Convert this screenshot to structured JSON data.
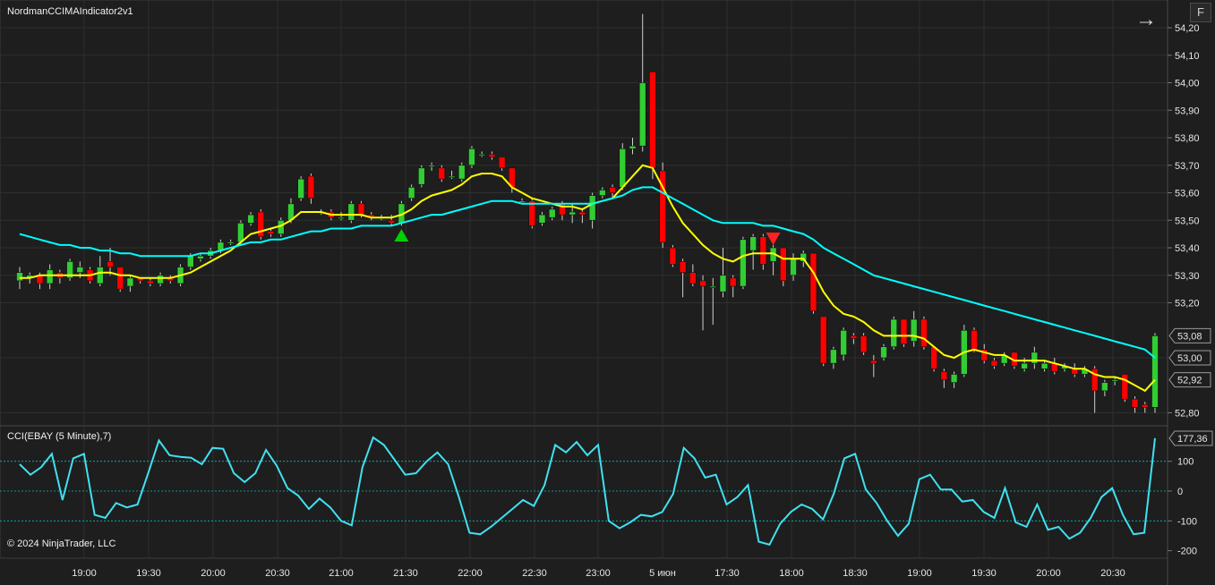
{
  "chart": {
    "title": "NordmanCCIMAIndicator2v1",
    "panel_button": "F",
    "nav_arrow": "→",
    "copyright": "© 2024 NinjaTrader, LLC",
    "cci_title": "CCI(EBAY (5 Minute),7)"
  },
  "chart_data": [
    {
      "type": "candlestick",
      "title": "NordmanCCIMAIndicator2v1",
      "ylim": [
        52.76,
        54.26
      ],
      "price_ticks": [
        "54,20",
        "54,10",
        "54,00",
        "53,90",
        "53,80",
        "53,70",
        "53,60",
        "53,50",
        "53,40",
        "53,30",
        "53,20",
        "52,80"
      ],
      "time_ticks": [
        "19:00",
        "19:30",
        "20:00",
        "20:30",
        "21:00",
        "21:30",
        "22:00",
        "22:30",
        "23:00",
        "5 июн",
        "17:30",
        "18:00",
        "18:30",
        "19:00",
        "19:30",
        "20:00",
        "20:30"
      ],
      "price_labels": [
        {
          "text": "53,08",
          "value": 53.08,
          "color": "#ffff00"
        },
        {
          "text": "53,00",
          "value": 53.0,
          "color": "#00ffff"
        },
        {
          "text": "52,92",
          "value": 52.92,
          "color": "#1e1e1e"
        }
      ],
      "candles": [
        [
          53.28,
          53.31,
          53.33,
          53.25
        ],
        [
          53.29,
          53.3,
          53.31,
          53.27
        ],
        [
          53.3,
          53.27,
          53.31,
          53.25
        ],
        [
          53.27,
          53.32,
          53.34,
          53.25
        ],
        [
          53.31,
          53.29,
          53.32,
          53.27
        ],
        [
          53.29,
          53.35,
          53.36,
          53.28
        ],
        [
          53.31,
          53.33,
          53.35,
          53.29
        ],
        [
          53.32,
          53.28,
          53.33,
          53.27
        ],
        [
          53.27,
          53.33,
          53.37,
          53.26
        ],
        [
          53.35,
          53.33,
          53.4,
          53.3
        ],
        [
          53.33,
          53.25,
          53.33,
          53.24
        ],
        [
          53.26,
          53.29,
          53.3,
          53.24
        ],
        [
          53.29,
          53.28,
          53.29,
          53.27
        ],
        [
          53.28,
          53.27,
          53.29,
          53.26
        ],
        [
          53.27,
          53.3,
          53.31,
          53.26
        ],
        [
          53.29,
          53.28,
          53.3,
          53.27
        ],
        [
          53.27,
          53.33,
          53.34,
          53.26
        ],
        [
          53.33,
          53.37,
          53.38,
          53.32
        ],
        [
          53.36,
          53.37,
          53.38,
          53.35
        ],
        [
          53.37,
          53.39,
          53.4,
          53.36
        ],
        [
          53.39,
          53.42,
          53.43,
          53.38
        ],
        [
          53.42,
          53.42,
          53.43,
          53.41
        ],
        [
          53.42,
          53.49,
          53.5,
          53.41
        ],
        [
          53.49,
          53.52,
          53.53,
          53.48
        ],
        [
          53.53,
          53.44,
          53.54,
          53.43
        ],
        [
          53.46,
          53.45,
          53.47,
          53.44
        ],
        [
          53.45,
          53.5,
          53.51,
          53.44
        ],
        [
          53.5,
          53.56,
          53.58,
          53.49
        ],
        [
          53.58,
          53.65,
          53.66,
          53.57
        ],
        [
          53.66,
          53.58,
          53.67,
          53.56
        ],
        [
          53.53,
          53.53,
          53.54,
          53.52
        ],
        [
          53.53,
          53.51,
          53.54,
          53.5
        ],
        [
          53.51,
          53.51,
          53.53,
          53.5
        ],
        [
          53.5,
          53.56,
          53.57,
          53.49
        ],
        [
          53.56,
          53.52,
          53.57,
          53.51
        ],
        [
          53.52,
          53.51,
          53.53,
          53.5
        ],
        [
          53.51,
          53.51,
          53.52,
          53.5
        ],
        [
          53.5,
          53.49,
          53.52,
          53.48
        ],
        [
          53.49,
          53.56,
          53.57,
          53.48
        ],
        [
          53.58,
          53.62,
          53.63,
          53.57
        ],
        [
          53.63,
          53.69,
          53.7,
          53.62
        ],
        [
          53.7,
          53.7,
          53.71,
          53.68
        ],
        [
          53.69,
          53.65,
          53.7,
          53.64
        ],
        [
          53.66,
          53.66,
          53.68,
          53.65
        ],
        [
          53.65,
          53.7,
          53.71,
          53.64
        ],
        [
          53.7,
          53.76,
          53.77,
          53.69
        ],
        [
          53.74,
          53.74,
          53.75,
          53.73
        ],
        [
          53.74,
          53.73,
          53.75,
          53.72
        ],
        [
          53.73,
          53.69,
          53.73,
          53.68
        ],
        [
          53.69,
          53.62,
          53.69,
          53.6
        ],
        [
          53.57,
          53.57,
          53.58,
          53.56
        ],
        [
          53.57,
          53.48,
          53.58,
          53.47
        ],
        [
          53.49,
          53.52,
          53.53,
          53.48
        ],
        [
          53.51,
          53.54,
          53.55,
          53.5
        ],
        [
          53.56,
          53.52,
          53.57,
          53.5
        ],
        [
          53.52,
          53.53,
          53.56,
          53.49
        ],
        [
          53.53,
          53.52,
          53.54,
          53.49
        ],
        [
          53.5,
          53.59,
          53.6,
          53.47
        ],
        [
          53.59,
          53.61,
          53.62,
          53.58
        ],
        [
          53.62,
          53.6,
          53.63,
          53.58
        ],
        [
          53.62,
          53.76,
          53.78,
          53.61
        ],
        [
          53.76,
          53.77,
          53.8,
          53.74
        ],
        [
          53.77,
          54.0,
          54.25,
          53.75
        ],
        [
          54.04,
          53.69,
          54.04,
          53.65
        ],
        [
          53.68,
          53.42,
          53.71,
          53.4
        ],
        [
          53.4,
          53.34,
          53.41,
          53.33
        ],
        [
          53.35,
          53.31,
          53.36,
          53.22
        ],
        [
          53.31,
          53.27,
          53.34,
          53.26
        ],
        [
          53.28,
          53.26,
          53.3,
          53.1
        ],
        [
          53.26,
          53.26,
          53.29,
          53.12
        ],
        [
          53.24,
          53.3,
          53.4,
          53.22
        ],
        [
          53.29,
          53.26,
          53.3,
          53.22
        ],
        [
          53.26,
          53.43,
          53.44,
          53.25
        ],
        [
          53.39,
          53.44,
          53.45,
          53.32
        ],
        [
          53.44,
          53.34,
          53.45,
          53.32
        ],
        [
          53.35,
          53.4,
          53.41,
          53.3
        ],
        [
          53.4,
          53.28,
          53.4,
          53.26
        ],
        [
          53.3,
          53.36,
          53.38,
          53.28
        ],
        [
          53.35,
          53.38,
          53.39,
          53.33
        ],
        [
          53.38,
          53.17,
          53.38,
          53.16
        ],
        [
          53.15,
          52.98,
          53.15,
          52.97
        ],
        [
          52.98,
          53.03,
          53.04,
          52.96
        ],
        [
          53.01,
          53.1,
          53.11,
          52.99
        ],
        [
          53.08,
          53.07,
          53.09,
          53.05
        ],
        [
          53.08,
          53.02,
          53.09,
          53.01
        ],
        [
          52.99,
          52.98,
          53.01,
          52.93
        ],
        [
          53.0,
          53.04,
          53.05,
          52.99
        ],
        [
          53.04,
          53.14,
          53.15,
          53.03
        ],
        [
          53.14,
          53.05,
          53.14,
          53.04
        ],
        [
          53.06,
          53.14,
          53.17,
          53.04
        ],
        [
          53.14,
          53.04,
          53.15,
          53.03
        ],
        [
          53.04,
          52.96,
          53.04,
          52.95
        ],
        [
          52.95,
          52.92,
          52.96,
          52.89
        ],
        [
          52.91,
          52.94,
          52.95,
          52.89
        ],
        [
          52.94,
          53.1,
          53.12,
          52.93
        ],
        [
          53.1,
          53.03,
          53.11,
          53.02
        ],
        [
          53.03,
          52.99,
          53.05,
          52.98
        ],
        [
          52.99,
          52.97,
          53.0,
          52.96
        ],
        [
          52.98,
          53.01,
          53.02,
          52.97
        ],
        [
          53.02,
          52.97,
          53.02,
          52.96
        ],
        [
          52.96,
          52.98,
          53.0,
          52.95
        ],
        [
          52.98,
          53.02,
          53.04,
          52.96
        ],
        [
          52.96,
          52.98,
          52.99,
          52.95
        ],
        [
          52.98,
          52.95,
          53.0,
          52.94
        ],
        [
          52.96,
          52.97,
          52.98,
          52.95
        ],
        [
          52.96,
          52.94,
          52.98,
          52.93
        ],
        [
          52.94,
          52.96,
          52.97,
          52.93
        ],
        [
          52.96,
          52.88,
          52.97,
          52.8
        ],
        [
          52.88,
          52.91,
          52.92,
          52.86
        ],
        [
          52.92,
          52.92,
          52.93,
          52.9
        ],
        [
          52.94,
          52.85,
          52.94,
          52.84
        ],
        [
          52.85,
          52.82,
          52.86,
          52.8
        ],
        [
          52.83,
          52.82,
          52.84,
          52.8
        ],
        [
          52.82,
          53.08,
          53.09,
          52.8
        ]
      ],
      "series": [
        {
          "name": "",
          "color": "#ffff00",
          "values": [
            53.29,
            53.29,
            53.3,
            53.3,
            53.3,
            53.3,
            53.3,
            53.3,
            53.31,
            53.31,
            53.3,
            53.3,
            53.29,
            53.29,
            53.29,
            53.29,
            53.3,
            53.31,
            53.33,
            53.35,
            53.37,
            53.39,
            53.42,
            53.45,
            53.46,
            53.47,
            53.48,
            53.5,
            53.53,
            53.53,
            53.53,
            53.52,
            53.52,
            53.52,
            53.52,
            53.51,
            53.51,
            53.51,
            53.52,
            53.54,
            53.57,
            53.59,
            53.6,
            53.61,
            53.63,
            53.66,
            53.67,
            53.67,
            53.66,
            53.62,
            53.6,
            53.58,
            53.57,
            53.56,
            53.55,
            53.55,
            53.54,
            53.56,
            53.57,
            53.58,
            53.62,
            53.66,
            53.7,
            53.69,
            53.62,
            53.55,
            53.49,
            53.45,
            53.41,
            53.38,
            53.36,
            53.35,
            53.37,
            53.38,
            53.38,
            53.38,
            53.36,
            53.36,
            53.36,
            53.31,
            53.24,
            53.19,
            53.16,
            53.15,
            53.13,
            53.1,
            53.08,
            53.08,
            53.08,
            53.08,
            53.07,
            53.04,
            53.01,
            53.0,
            53.02,
            53.03,
            53.02,
            53.01,
            53.01,
            52.99,
            52.99,
            52.99,
            52.99,
            52.98,
            52.97,
            52.96,
            52.96,
            52.94,
            52.93,
            52.93,
            52.92,
            52.9,
            52.88,
            52.92
          ]
        },
        {
          "name": "",
          "color": "#00ffff",
          "values": [
            53.45,
            53.44,
            53.43,
            53.42,
            53.41,
            53.41,
            53.4,
            53.4,
            53.39,
            53.39,
            53.38,
            53.38,
            53.37,
            53.37,
            53.37,
            53.37,
            53.37,
            53.37,
            53.38,
            53.38,
            53.39,
            53.4,
            53.41,
            53.42,
            53.42,
            53.43,
            53.43,
            53.44,
            53.45,
            53.46,
            53.46,
            53.47,
            53.47,
            53.47,
            53.48,
            53.48,
            53.48,
            53.48,
            53.49,
            53.5,
            53.51,
            53.52,
            53.52,
            53.53,
            53.54,
            53.55,
            53.56,
            53.57,
            53.57,
            53.57,
            53.56,
            53.56,
            53.56,
            53.56,
            53.56,
            53.56,
            53.56,
            53.56,
            53.57,
            53.58,
            53.59,
            53.61,
            53.62,
            53.62,
            53.6,
            53.58,
            53.56,
            53.54,
            53.52,
            53.5,
            53.49,
            53.49,
            53.49,
            53.49,
            53.48,
            53.48,
            53.47,
            53.46,
            53.45,
            53.43,
            53.4,
            53.38,
            53.36,
            53.34,
            53.32,
            53.3,
            53.29,
            53.28,
            53.27,
            53.26,
            53.25,
            53.24,
            53.23,
            53.22,
            53.21,
            53.2,
            53.19,
            53.18,
            53.17,
            53.16,
            53.15,
            53.14,
            53.13,
            53.12,
            53.11,
            53.1,
            53.09,
            53.08,
            53.07,
            53.06,
            53.05,
            53.04,
            53.03,
            53.0
          ]
        }
      ],
      "markers": [
        {
          "type": "up",
          "index": 38
        },
        {
          "type": "down",
          "index": 75
        }
      ]
    },
    {
      "type": "line",
      "title": "CCI(EBAY (5 Minute),7)",
      "ylim": [
        -230,
        210
      ],
      "ticks": [
        "100",
        "0",
        "-100",
        "-200"
      ],
      "current_label": "177,36",
      "levels": [
        100,
        0,
        -100
      ],
      "values": [
        90,
        55,
        80,
        125,
        -30,
        110,
        125,
        -80,
        -90,
        -40,
        -55,
        -45,
        60,
        170,
        120,
        115,
        112,
        90,
        145,
        142,
        60,
        30,
        60,
        138,
        85,
        10,
        -15,
        -60,
        -25,
        -55,
        -100,
        -115,
        80,
        180,
        155,
        105,
        55,
        60,
        100,
        130,
        90,
        -20,
        -140,
        -145,
        -120,
        -90,
        -60,
        -30,
        -50,
        20,
        155,
        130,
        165,
        120,
        155,
        -100,
        -125,
        -105,
        -80,
        -85,
        -70,
        -10,
        145,
        110,
        45,
        55,
        -45,
        -20,
        20,
        -170,
        -180,
        -110,
        -70,
        -45,
        -60,
        -95,
        -10,
        110,
        125,
        5,
        -40,
        -100,
        -150,
        -110,
        40,
        55,
        5,
        5,
        -35,
        -30,
        -70,
        -90,
        10,
        -105,
        -120,
        -45,
        -130,
        -120,
        -160,
        -140,
        -90,
        -20,
        10,
        -80,
        -145,
        -140,
        177.36
      ]
    }
  ]
}
